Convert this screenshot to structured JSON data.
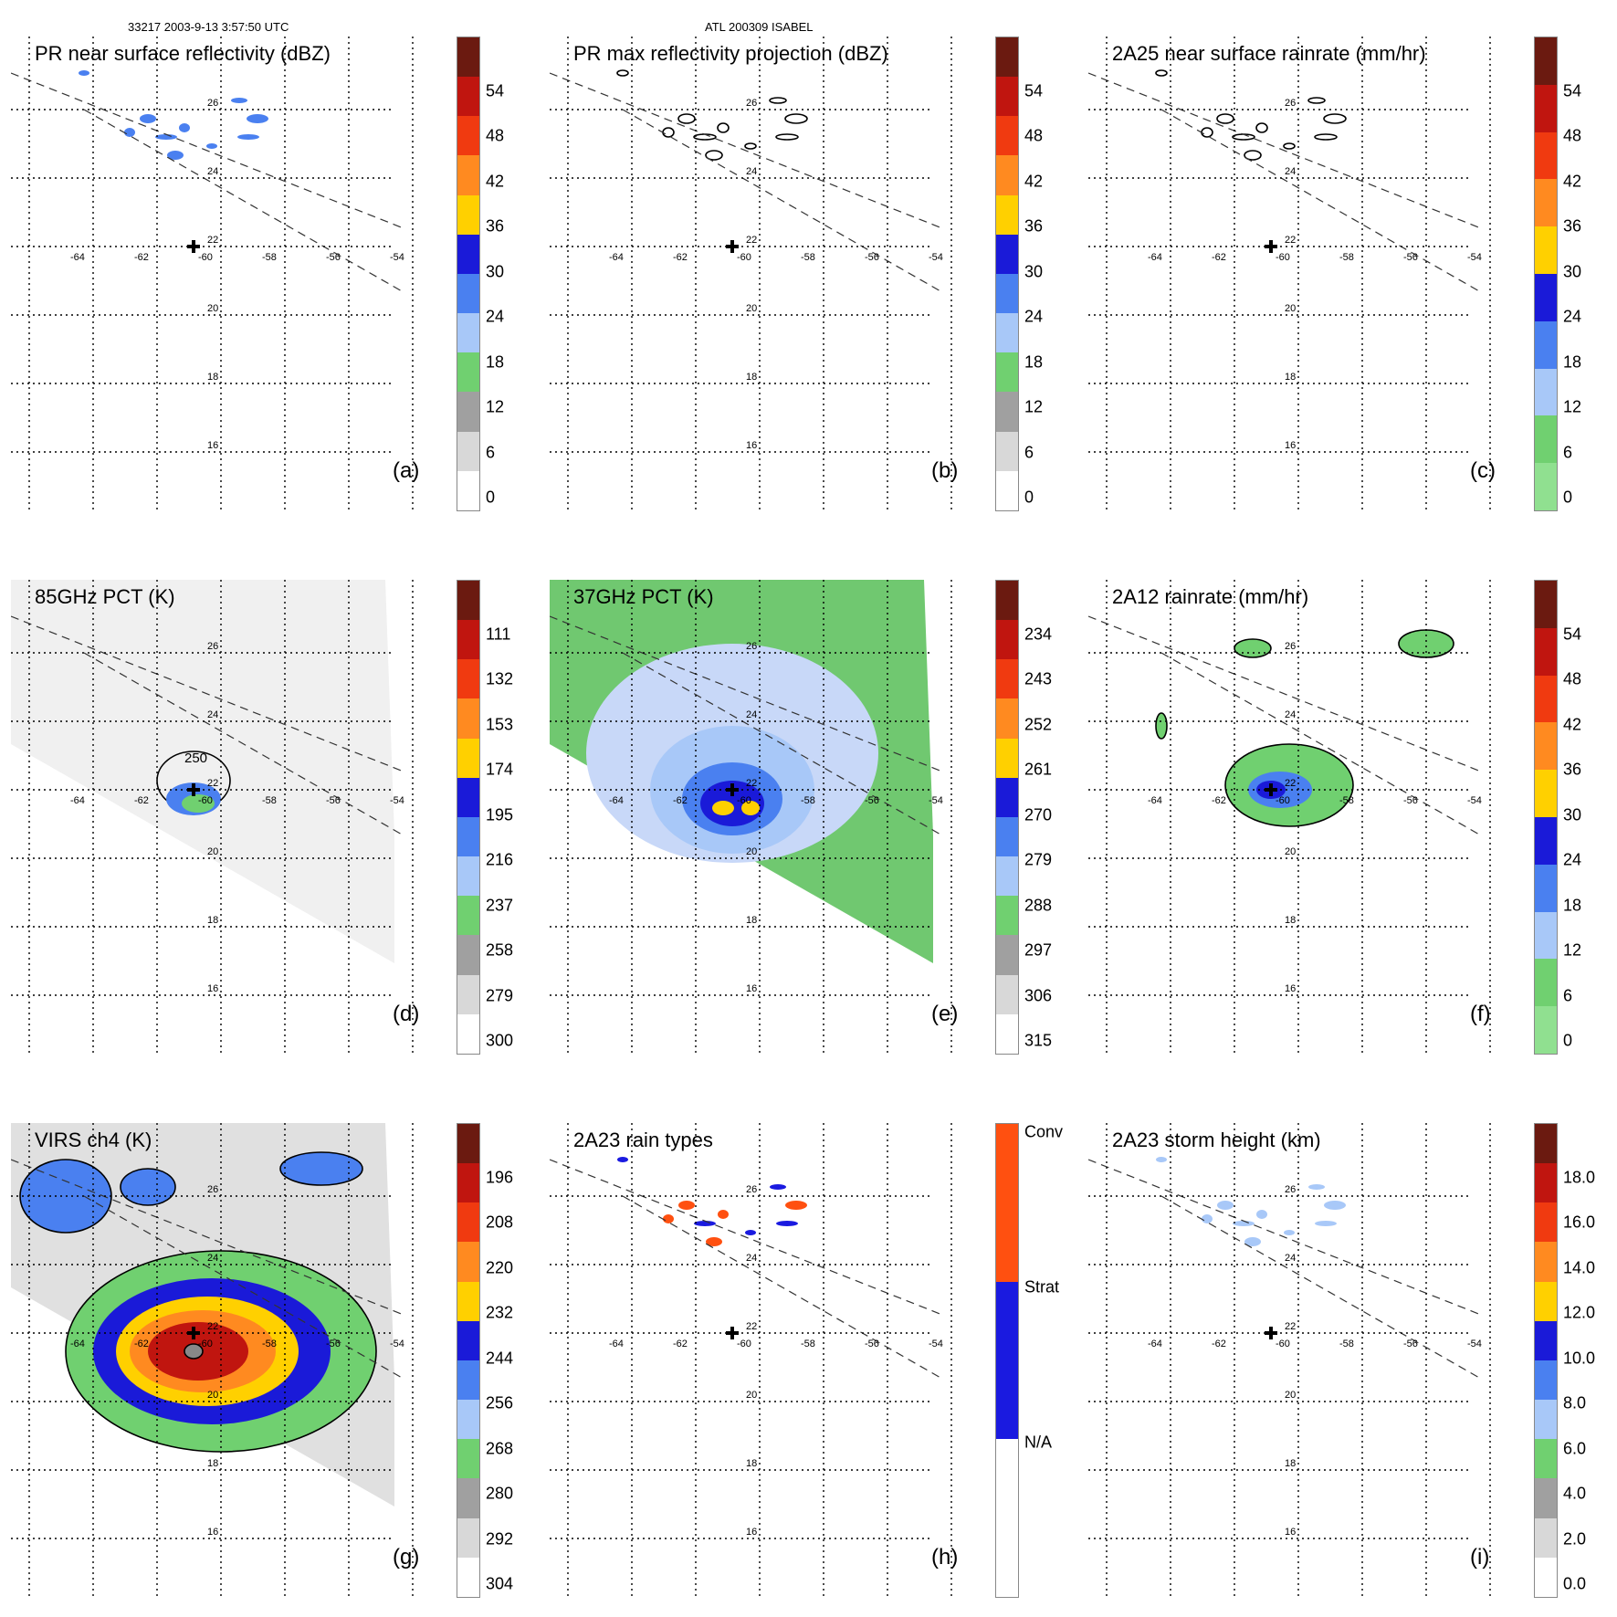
{
  "header": {
    "orbit_time": "33217 2003-9-13 3:57:50 UTC",
    "storm": "ATL 200309 ISABEL"
  },
  "map": {
    "lon_labels": [
      "-64",
      "-62",
      "-60",
      "-58",
      "-56",
      "-54"
    ],
    "lat_labels": [
      "26",
      "24",
      "22",
      "20",
      "18",
      "16"
    ]
  },
  "panels": [
    {
      "id": "a",
      "title": "PR near surface reflectivity (dBZ)",
      "label": "(a)",
      "ticks": [
        "54",
        "48",
        "42",
        "36",
        "30",
        "24",
        "18",
        "12",
        "6",
        "0"
      ],
      "colors": [
        "#6b1a10",
        "#c0150f",
        "#f03a10",
        "#ff8a20",
        "#ffd000",
        "#1a1ad8",
        "#4a80f0",
        "#a8c8f8",
        "#70d070",
        "#a0a0a0",
        "#d8d8d8",
        "#ffffff"
      ]
    },
    {
      "id": "b",
      "title": "PR max reflectivity projection (dBZ)",
      "label": "(b)",
      "ticks": [
        "54",
        "48",
        "42",
        "36",
        "30",
        "24",
        "18",
        "12",
        "6",
        "0"
      ],
      "colors": [
        "#6b1a10",
        "#c0150f",
        "#f03a10",
        "#ff8a20",
        "#ffd000",
        "#1a1ad8",
        "#4a80f0",
        "#a8c8f8",
        "#70d070",
        "#a0a0a0",
        "#d8d8d8",
        "#ffffff"
      ]
    },
    {
      "id": "c",
      "title": "2A25 near surface rainrate (mm/hr)",
      "label": "(c)",
      "ticks": [
        "54",
        "48",
        "42",
        "36",
        "30",
        "24",
        "18",
        "12",
        "6",
        "0"
      ],
      "colors": [
        "#6b1a10",
        "#c0150f",
        "#f03a10",
        "#ff8a20",
        "#ffd000",
        "#1a1ad8",
        "#4a80f0",
        "#a8c8f8",
        "#70d070",
        "#90e090"
      ]
    },
    {
      "id": "d",
      "title": "85GHz PCT (K)",
      "label": "(d)",
      "ticks": [
        "111",
        "132",
        "153",
        "174",
        "195",
        "216",
        "237",
        "258",
        "279",
        "300"
      ],
      "colors": [
        "#6b1a10",
        "#c0150f",
        "#f03a10",
        "#ff8a20",
        "#ffd000",
        "#1a1ad8",
        "#4a80f0",
        "#a8c8f8",
        "#70d070",
        "#a0a0a0",
        "#d8d8d8",
        "#ffffff"
      ]
    },
    {
      "id": "e",
      "title": "37GHz PCT (K)",
      "label": "(e)",
      "ticks": [
        "234",
        "243",
        "252",
        "261",
        "270",
        "279",
        "288",
        "297",
        "306",
        "315"
      ],
      "colors": [
        "#6b1a10",
        "#c0150f",
        "#f03a10",
        "#ff8a20",
        "#ffd000",
        "#1a1ad8",
        "#4a80f0",
        "#a8c8f8",
        "#70d070",
        "#a0a0a0",
        "#d8d8d8",
        "#ffffff"
      ]
    },
    {
      "id": "f",
      "title": "2A12 rainrate (mm/hr)",
      "label": "(f)",
      "ticks": [
        "54",
        "48",
        "42",
        "36",
        "30",
        "24",
        "18",
        "12",
        "6",
        "0"
      ],
      "colors": [
        "#6b1a10",
        "#c0150f",
        "#f03a10",
        "#ff8a20",
        "#ffd000",
        "#1a1ad8",
        "#4a80f0",
        "#a8c8f8",
        "#70d070",
        "#90e090"
      ]
    },
    {
      "id": "g",
      "title": "VIRS ch4 (K)",
      "label": "(g)",
      "ticks": [
        "196",
        "208",
        "220",
        "232",
        "244",
        "256",
        "268",
        "280",
        "292",
        "304"
      ],
      "colors": [
        "#6b1a10",
        "#c0150f",
        "#f03a10",
        "#ff8a20",
        "#ffd000",
        "#1a1ad8",
        "#4a80f0",
        "#a8c8f8",
        "#70d070",
        "#a0a0a0",
        "#d8d8d8",
        "#ffffff"
      ]
    },
    {
      "id": "h",
      "title": "2A23 rain types",
      "label": "(h)",
      "ticks": [
        "Conv",
        "Strat",
        "N/A"
      ],
      "colors": [
        "#ff5010",
        "#1a1ae0",
        "#ffffff"
      ]
    },
    {
      "id": "i",
      "title": "2A23 storm height (km)",
      "label": "(i)",
      "ticks": [
        "18.0",
        "16.0",
        "14.0",
        "12.0",
        "10.0",
        "8.0",
        "6.0",
        "4.0",
        "2.0",
        "0.0"
      ],
      "colors": [
        "#6b1a10",
        "#c0150f",
        "#f03a10",
        "#ff8a20",
        "#ffd000",
        "#1a1ad8",
        "#4a80f0",
        "#a8c8f8",
        "#70d070",
        "#a0a0a0",
        "#d8d8d8",
        "#ffffff"
      ]
    }
  ]
}
